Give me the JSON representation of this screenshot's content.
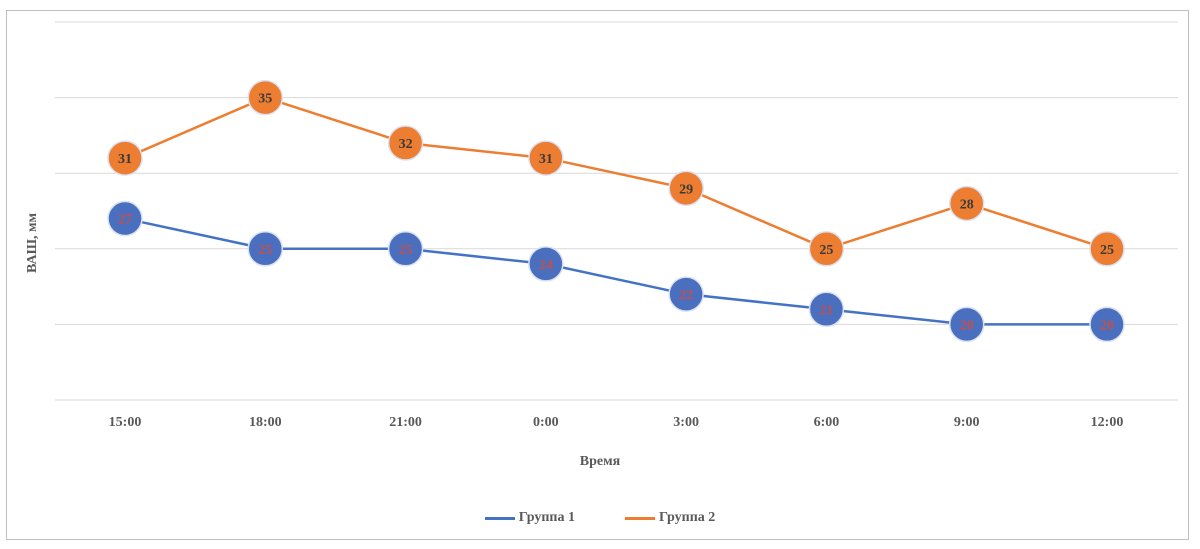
{
  "chart_data": {
    "type": "line",
    "title": "",
    "xlabel": "Время",
    "ylabel": "ВАШ, мм",
    "ylim": [
      15,
      40
    ],
    "grid": true,
    "legend_position": "bottom",
    "categories": [
      "15:00",
      "18:00",
      "21:00",
      "0:00",
      "3:00",
      "6:00",
      "9:00",
      "12:00"
    ],
    "series": [
      {
        "name": "Группа 1",
        "color": "#4472c4",
        "marker_fill": "#4a6fbf",
        "label_color": "#c0504d",
        "values": [
          27,
          25,
          25,
          24,
          22,
          21,
          20,
          20
        ]
      },
      {
        "name": "Группа 2",
        "color": "#ed7d31",
        "marker_fill": "#ed7d31",
        "label_color": "#3a3a3a",
        "values": [
          31,
          35,
          32,
          31,
          29,
          25,
          28,
          25
        ]
      }
    ]
  },
  "colors": {
    "grid": "#d9d9d9",
    "axis_text": "#595959",
    "frame": "#bfbfbf"
  }
}
